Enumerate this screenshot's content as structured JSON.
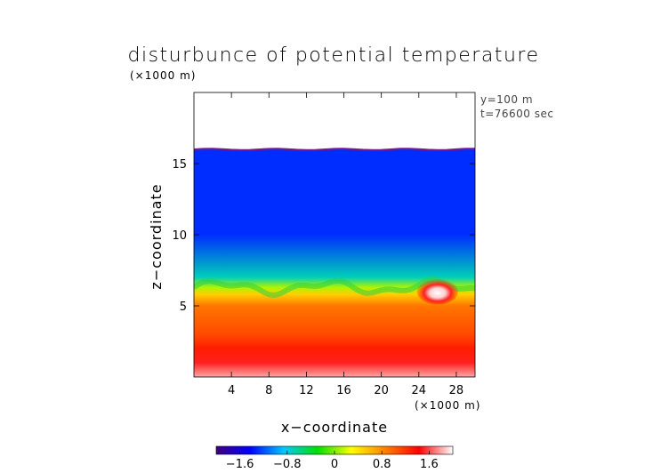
{
  "chart_data": {
    "type": "heatmap",
    "title": "disturbunce of potential temperature",
    "ylabel": "z−coordinate",
    "xlabel": "x−coordinate",
    "y_unit": "(×1000 m)",
    "x_unit": "(×1000 m)",
    "annotations": [
      "y=100 m",
      "t=76600 sec"
    ],
    "xlim": [
      0,
      30
    ],
    "ylim": [
      0,
      20
    ],
    "x_ticks": [
      4,
      8,
      12,
      16,
      20,
      24,
      28
    ],
    "y_ticks": [
      5,
      10,
      15
    ],
    "x_tick_labels": [
      "4",
      "8",
      "12",
      "16",
      "20",
      "24",
      "28"
    ],
    "y_tick_labels": [
      "5",
      "10",
      "15"
    ],
    "data_top_z": 16,
    "colorbar": {
      "range": [
        -2,
        2
      ],
      "ticks": [
        -1.6,
        -0.8,
        0,
        0.8,
        1.6
      ],
      "tick_labels": [
        "−1.6",
        "−0.8",
        "0",
        "0.8",
        "1.6"
      ],
      "colors": [
        "#400080",
        "#0000ff",
        "#00c8ff",
        "#00e000",
        "#ffff00",
        "#ff8000",
        "#ff0000",
        "#ffffff"
      ]
    },
    "field_profile": [
      {
        "z": 0,
        "value": 1.8
      },
      {
        "z": 1,
        "value": 1.5
      },
      {
        "z": 2,
        "value": 1.3
      },
      {
        "z": 3,
        "value": 1.1
      },
      {
        "z": 4,
        "value": 1.0
      },
      {
        "z": 5,
        "value": 0.9
      },
      {
        "z": 5.8,
        "value": 0.5
      },
      {
        "z": 6.3,
        "value": 0.1
      },
      {
        "z": 7,
        "value": -0.7
      },
      {
        "z": 10,
        "value": -1.3
      },
      {
        "z": 16,
        "value": -1.3
      }
    ],
    "features": [
      {
        "x": 26,
        "z": 6,
        "value": 2.0
      }
    ]
  }
}
